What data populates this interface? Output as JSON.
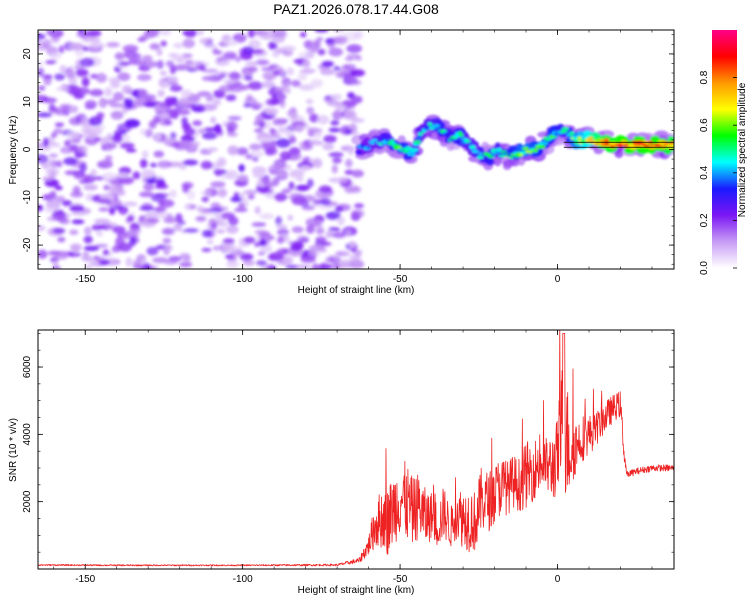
{
  "figure_title": "PAZ1.2026.078.17.44.G08",
  "chart_data": [
    {
      "type": "heatmap",
      "title": "PAZ1.2026.078.17.44.G08",
      "xlabel": "Height of straight line (km)",
      "ylabel": "Frequency (Hz)",
      "xlim": [
        -165,
        37
      ],
      "ylim": [
        -25,
        25
      ],
      "xticks": [
        -150,
        -100,
        -50,
        0
      ],
      "xtick_labels": [
        "-150",
        "-100",
        "-50",
        "0"
      ],
      "yticks": [
        -20,
        -10,
        0,
        10,
        20
      ],
      "ytick_labels": [
        "-20",
        "-10",
        "0",
        "10",
        "20"
      ],
      "colorbar": {
        "label": "Normalized spectral amplitude",
        "range": [
          0,
          1
        ],
        "ticks": [
          0.0,
          0.2,
          0.4,
          0.6,
          0.8
        ],
        "tick_labels": [
          "0.0",
          "0.2",
          "0.4",
          "0.6",
          "0.8"
        ],
        "colors": [
          "#ffffff",
          "#c79cf5",
          "#7b16f3",
          "#1a1aff",
          "#00ffff",
          "#00ff00",
          "#ffff00",
          "#ff9900",
          "#ff0000",
          "#ff0088"
        ]
      },
      "noise_region": {
        "x": [
          -165,
          -63
        ],
        "amplitude": [
          0.05,
          0.25
        ]
      },
      "signal_ridge": {
        "x": [
          -63,
          -58,
          -54,
          -50,
          -46,
          -43,
          -40,
          -37,
          -34,
          -31,
          -28,
          -25,
          -22,
          -19,
          -16,
          -13,
          -10,
          -7,
          -4,
          -1,
          2,
          6,
          10,
          14,
          20,
          26,
          32,
          37
        ],
        "frequency": [
          0,
          1.5,
          2,
          0,
          -0.5,
          4,
          5,
          4,
          2,
          3,
          1,
          -1,
          -1.5,
          -0.5,
          -1.5,
          -1,
          0,
          0,
          1.5,
          3.5,
          4,
          2,
          2,
          1.5,
          1,
          1,
          1,
          1
        ],
        "amplitude": [
          0.3,
          0.35,
          0.4,
          0.5,
          0.45,
          0.35,
          0.4,
          0.45,
          0.4,
          0.45,
          0.35,
          0.4,
          0.45,
          0.4,
          0.45,
          0.5,
          0.55,
          0.5,
          0.45,
          0.5,
          0.4,
          0.55,
          0.65,
          0.75,
          0.8,
          0.8,
          0.8,
          0.75
        ]
      }
    },
    {
      "type": "line",
      "xlabel": "Height of straight line (km)",
      "ylabel": "SNR (10 * v/v)",
      "xlim": [
        -165,
        37
      ],
      "ylim": [
        0,
        7100
      ],
      "xticks": [
        -150,
        -100,
        -50,
        0
      ],
      "xtick_labels": [
        "-150",
        "-100",
        "-50",
        "0"
      ],
      "yticks": [
        2000,
        4000,
        6000
      ],
      "ytick_labels": [
        "2000",
        "4000",
        "6000"
      ],
      "color": "#ee2222",
      "series": [
        {
          "name": "SNR",
          "x": [
            -165,
            -140,
            -100,
            -70,
            -63,
            -60,
            -58,
            -56,
            -54,
            -52,
            -50,
            -48,
            -46,
            -44,
            -42,
            -40,
            -38,
            -36,
            -34,
            -32,
            -30,
            -28,
            -26,
            -24,
            -22,
            -20,
            -18,
            -16,
            -14,
            -12,
            -10,
            -8,
            -6,
            -4,
            -2,
            0,
            1,
            2,
            3,
            4,
            6,
            8,
            10,
            12,
            14,
            16,
            18,
            20,
            21,
            22,
            25,
            30,
            37
          ],
          "y": [
            120,
            110,
            110,
            120,
            250,
            700,
            1300,
            1500,
            1400,
            1800,
            2100,
            2000,
            1700,
            1900,
            1500,
            1600,
            1300,
            1700,
            1200,
            1700,
            1500,
            1500,
            1400,
            2100,
            2000,
            2200,
            2500,
            2400,
            2600,
            2500,
            2800,
            2900,
            3100,
            3100,
            3000,
            3300,
            4000,
            4300,
            3800,
            3600,
            3700,
            3900,
            4000,
            4100,
            4400,
            4600,
            4800,
            4900,
            3600,
            2800,
            2900,
            3000,
            3000
          ],
          "spread": [
            20,
            20,
            20,
            30,
            80,
            300,
            700,
            900,
            1000,
            1100,
            1100,
            1200,
            1000,
            1000,
            900,
            700,
            700,
            800,
            600,
            800,
            900,
            1000,
            900,
            1000,
            900,
            900,
            900,
            800,
            800,
            800,
            1000,
            900,
            900,
            800,
            1000,
            1200,
            1800,
            2400,
            1800,
            1400,
            800,
            700,
            600,
            500,
            500,
            450,
            400,
            400,
            300,
            100,
            100,
            100,
            100
          ]
        }
      ]
    }
  ]
}
